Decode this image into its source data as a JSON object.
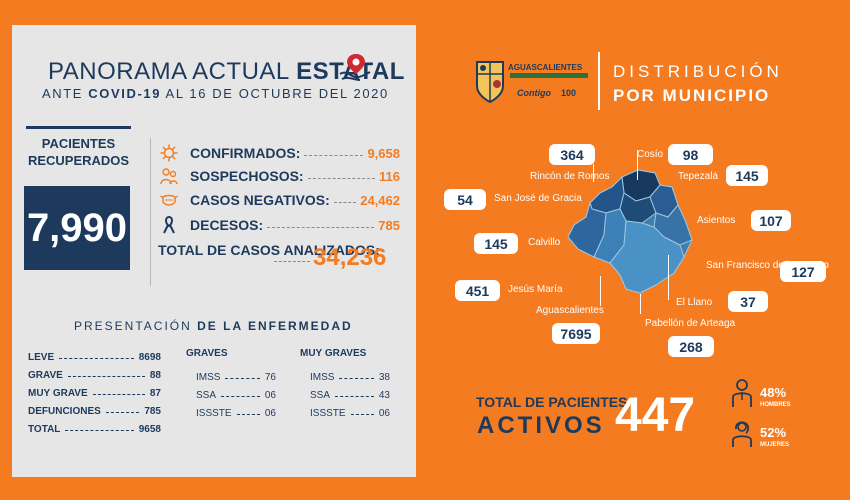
{
  "left": {
    "title_prefix": "PANORAMA ACTUAL ",
    "title_bold": "ESTATAL",
    "subtitle_prefix": "ANTE ",
    "subtitle_bold": "COVID-19",
    "subtitle_suffix": " AL 16 DE OCTUBRE DEL 2020",
    "recovered_label": "PACIENTES RECUPERADOS",
    "recovered_value": "7,990",
    "stats": [
      {
        "label": "CONFIRMADOS:",
        "value": "9,658",
        "icon": "virus-icon"
      },
      {
        "label": "SOSPECHOSOS:",
        "value": "116",
        "icon": "patients-icon"
      },
      {
        "label": "CASOS NEGATIVOS:",
        "value": "24,462",
        "icon": "mask-icon"
      },
      {
        "label": "DECESOS:",
        "value": "785",
        "icon": "ribbon-icon"
      }
    ],
    "total_label": "TOTAL DE CASOS ANALIZADOS:",
    "total_value": "34,236",
    "presentation_prefix": "PRESENTACIÓN ",
    "presentation_bold": "DE LA ENFERMEDAD",
    "leve": [
      {
        "label": "LEVE",
        "value": "8698"
      },
      {
        "label": "GRAVE",
        "value": "88"
      },
      {
        "label": "MUY GRAVE",
        "value": "87"
      },
      {
        "label": "DEFUNCIONES",
        "value": "785"
      },
      {
        "label": "TOTAL",
        "value": "9658"
      }
    ],
    "graves": {
      "heading": "GRAVES",
      "rows": [
        {
          "label": "IMSS",
          "value": "76"
        },
        {
          "label": "SSA",
          "value": "06"
        },
        {
          "label": "ISSSTE",
          "value": "06"
        }
      ]
    },
    "muy_graves": {
      "heading": "MUY GRAVES",
      "rows": [
        {
          "label": "IMSS",
          "value": "38"
        },
        {
          "label": "SSA",
          "value": "43"
        },
        {
          "label": "ISSSTE",
          "value": "06"
        }
      ]
    }
  },
  "right": {
    "logo_name": "AGUASCALIENTES",
    "logo_contigo": "Contigo",
    "logo_100": "100",
    "header_line1": "DISTRIBUCIÓN",
    "header_line2": "POR MUNICIPIO",
    "municipalities": [
      {
        "name": "Rincón de Romos",
        "value": "364"
      },
      {
        "name": "Cosío",
        "value": "98"
      },
      {
        "name": "Tepezalá",
        "value": "145"
      },
      {
        "name": "San José de Gracia",
        "value": "54"
      },
      {
        "name": "Asientos",
        "value": "107"
      },
      {
        "name": "Calvillo",
        "value": "145"
      },
      {
        "name": "San Francisco de los Romo",
        "value": "127"
      },
      {
        "name": "Jesús María",
        "value": "451"
      },
      {
        "name": "El Llano",
        "value": "37"
      },
      {
        "name": "Aguascalientes",
        "value": "7695"
      },
      {
        "name": "Pabellón de Arteaga",
        "value": "268"
      }
    ],
    "active_line1": "TOTAL DE PACIENTES",
    "active_line2": "ACTIVOS",
    "active_value": "447",
    "men_pct": "48%",
    "men_label": "HOMBRES",
    "women_pct": "52%",
    "women_label": "MUJERES"
  },
  "colors": {
    "orange": "#f47b20",
    "navy": "#1d3a5c",
    "panel": "#e6e6e6"
  }
}
